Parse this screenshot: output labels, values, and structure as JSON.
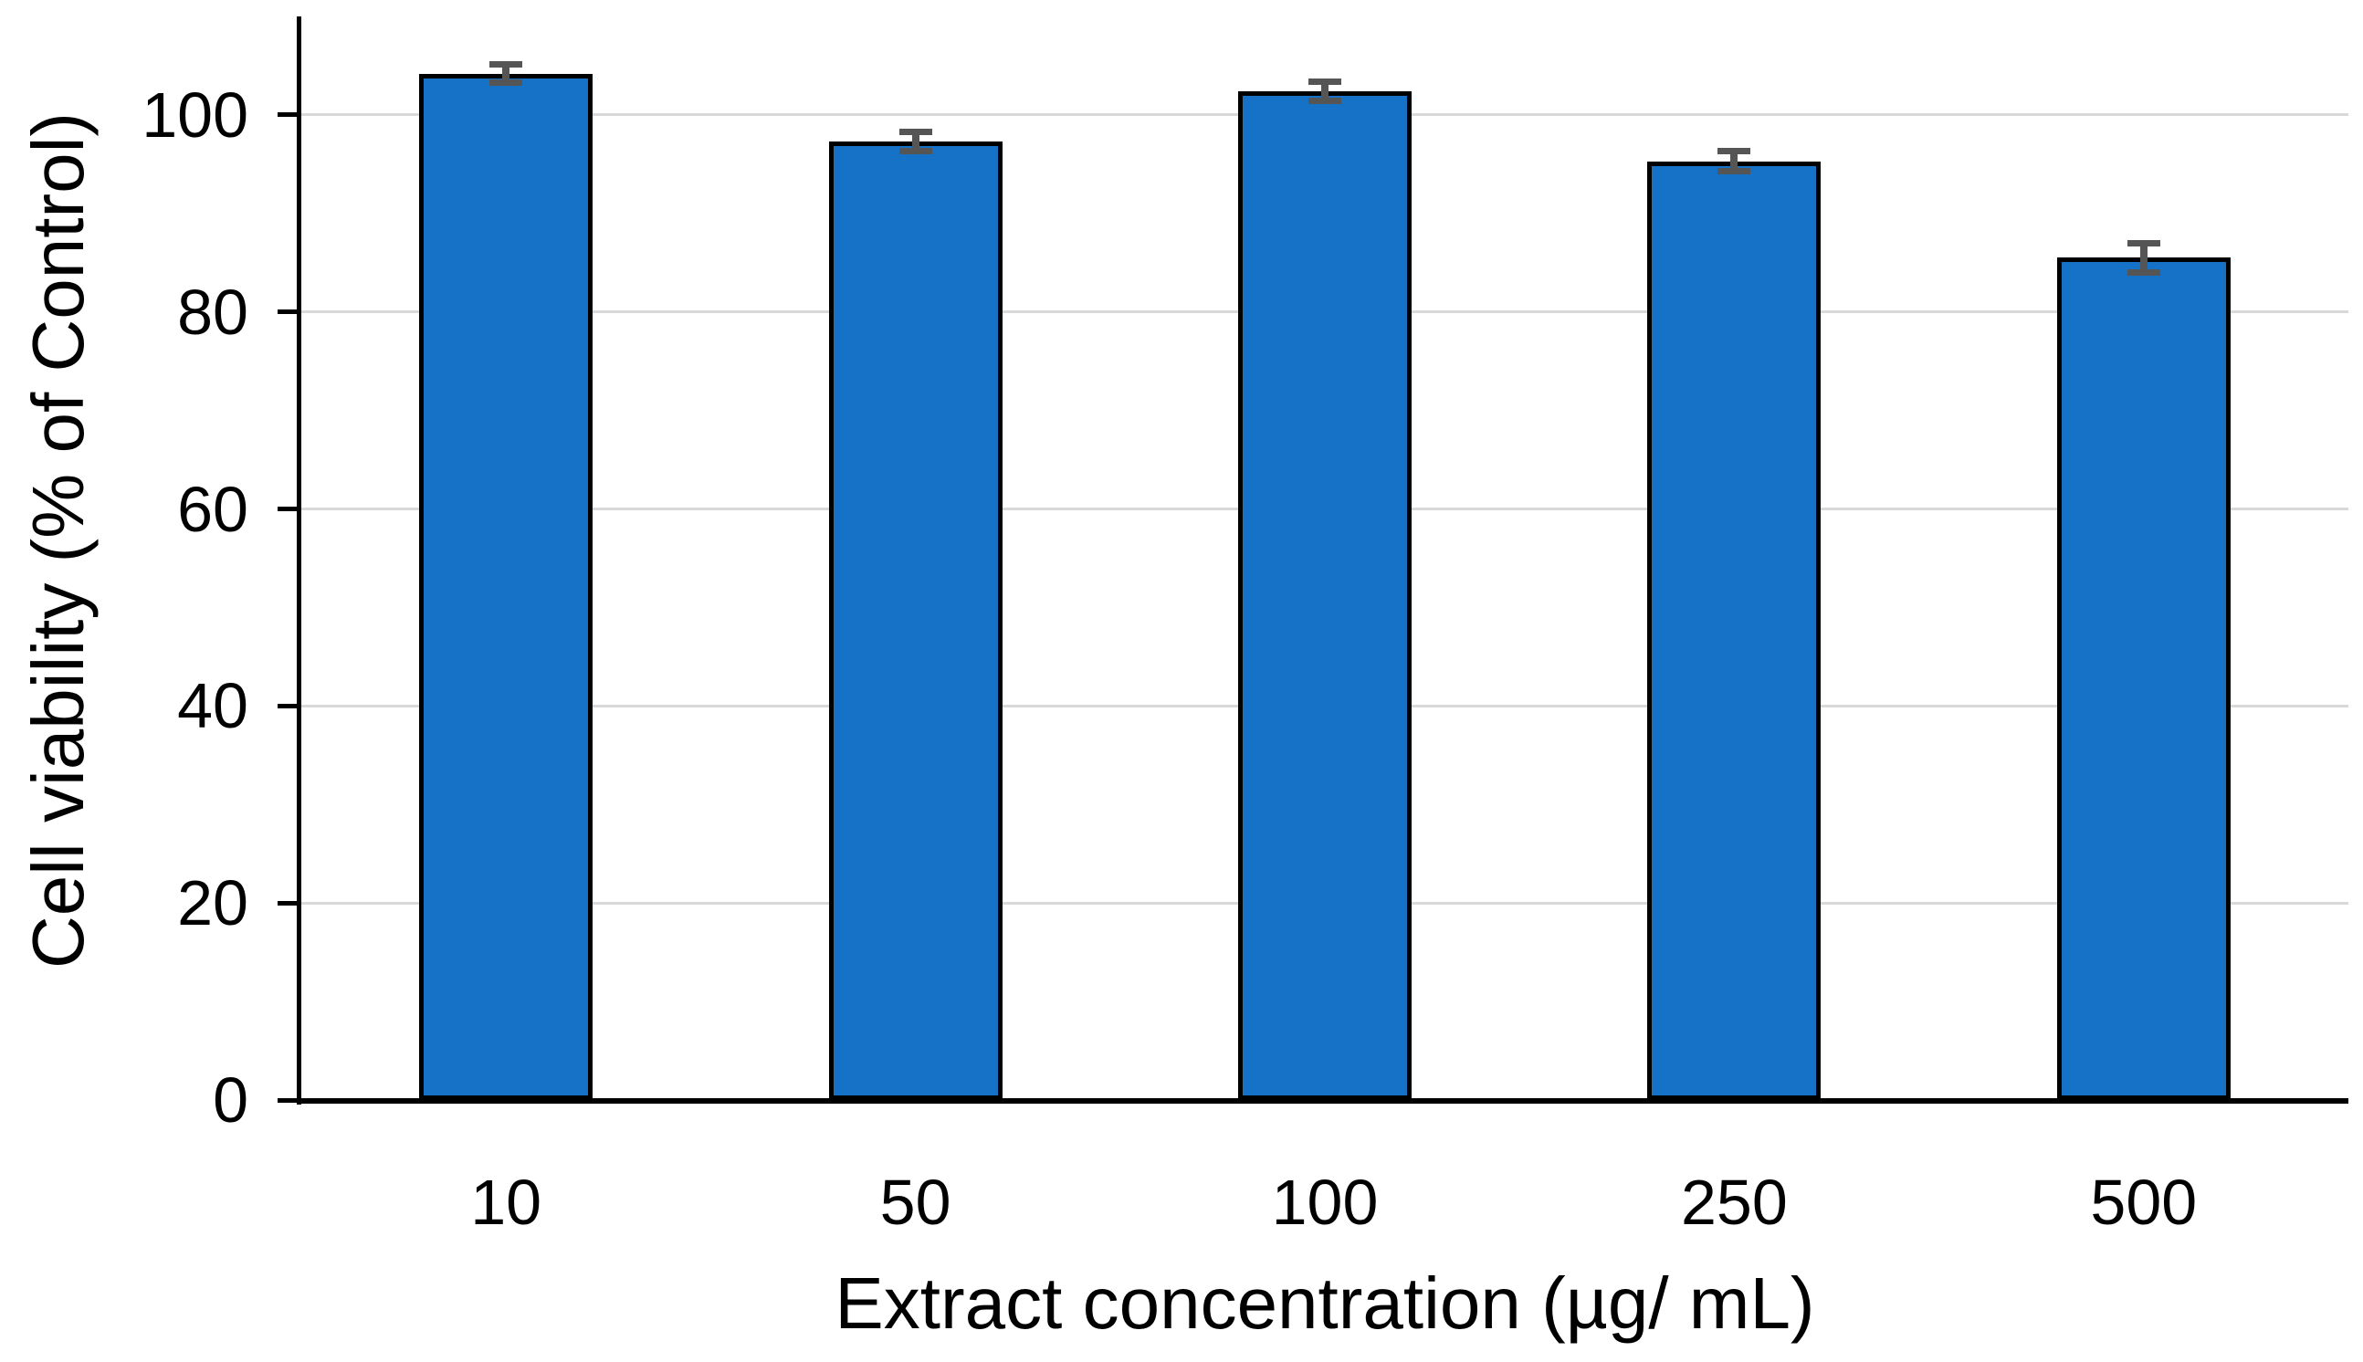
{
  "chart_data": {
    "type": "bar",
    "title": "",
    "xlabel": "Extract concentration (µg/ mL)",
    "ylabel": "Cell viability (% of Control)",
    "categories": [
      "10",
      "50",
      "100",
      "250",
      "500"
    ],
    "values": [
      104.2,
      97.3,
      102.4,
      95.3,
      85.5
    ],
    "errors": [
      0.9,
      1.0,
      1.0,
      1.0,
      1.5
    ],
    "ylim": [
      0,
      110
    ],
    "yticks": [
      0,
      20,
      40,
      60,
      80,
      100
    ],
    "grid": true,
    "legend": false,
    "colors": {
      "bar_fill": "#1572C6",
      "bar_border": "#000000",
      "error_bar": "#555555",
      "gridline": "#D9D9D9",
      "axis": "#000000",
      "text": "#000000"
    }
  }
}
